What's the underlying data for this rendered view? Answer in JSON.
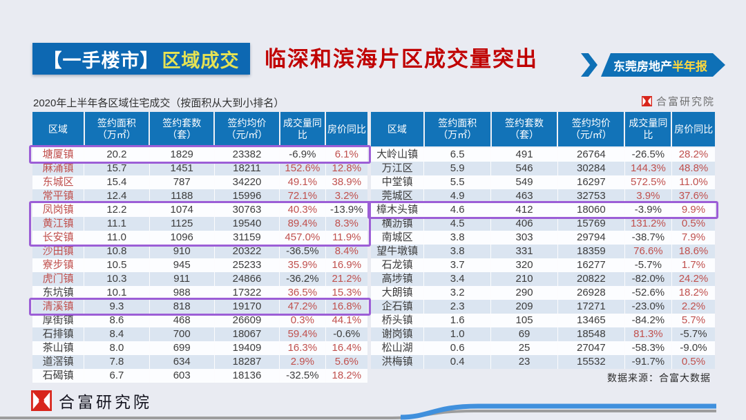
{
  "header": {
    "section_box": {
      "bracket": "【一手楼市】",
      "topic": "区域成交"
    },
    "title": "临深和滨海片区成交量突出",
    "ribbon": {
      "text_white": "东莞房地产",
      "text_yellow": "半年报"
    }
  },
  "subtitle": "2020年上半年各区域住宅成交（按面积从大到小排名）",
  "top_brand": "合富研究院",
  "footer_brand": "合富研究院",
  "source_note": "数据来源：合富大数据",
  "columns": [
    {
      "title": "区域",
      "unit": ""
    },
    {
      "title": "签约面积",
      "unit": "（万㎡）"
    },
    {
      "title": "签约套数",
      "unit": "（套）"
    },
    {
      "title": "签约均价",
      "unit": "（元/㎡）"
    },
    {
      "title": "成交量同比",
      "unit": ""
    },
    {
      "title": "房价同比",
      "unit": ""
    }
  ],
  "tables": [
    {
      "rows": [
        {
          "region": "塘厦镇",
          "red": true,
          "hl": true,
          "v": [
            "20.2",
            "1829",
            "23382",
            "-6.9%",
            "6.1%"
          ]
        },
        {
          "region": "麻涌镇",
          "red": true,
          "hl": false,
          "v": [
            "15.7",
            "1451",
            "18211",
            "152.6%",
            "12.8%"
          ]
        },
        {
          "region": "东城区",
          "red": true,
          "hl": false,
          "v": [
            "15.4",
            "787",
            "34220",
            "49.1%",
            "38.9%"
          ]
        },
        {
          "region": "常平镇",
          "red": true,
          "hl": false,
          "v": [
            "12.4",
            "1188",
            "15996",
            "72.1%",
            "3.2%"
          ]
        },
        {
          "region": "凤岗镇",
          "red": true,
          "hl": true,
          "v": [
            "12.2",
            "1074",
            "30763",
            "40.3%",
            "-13.9%"
          ]
        },
        {
          "region": "黄江镇",
          "red": true,
          "hl": true,
          "v": [
            "11.1",
            "1125",
            "19540",
            "89.4%",
            "8.3%"
          ]
        },
        {
          "region": "长安镇",
          "red": true,
          "hl": true,
          "v": [
            "11.0",
            "1096",
            "31159",
            "457.0%",
            "11.9%"
          ]
        },
        {
          "region": "沙田镇",
          "red": true,
          "hl": false,
          "v": [
            "10.8",
            "910",
            "20322",
            "-36.5%",
            "8.4%"
          ]
        },
        {
          "region": "寮步镇",
          "red": true,
          "hl": false,
          "v": [
            "10.5",
            "945",
            "25233",
            "35.9%",
            "16.9%"
          ]
        },
        {
          "region": "虎门镇",
          "red": true,
          "hl": false,
          "v": [
            "10.3",
            "911",
            "24866",
            "-36.2%",
            "21.2%"
          ]
        },
        {
          "region": "东坑镇",
          "red": false,
          "hl": false,
          "v": [
            "10.1",
            "988",
            "17322",
            "36.5%",
            "15.3%"
          ]
        },
        {
          "region": "清溪镇",
          "red": true,
          "hl": true,
          "v": [
            "9.3",
            "818",
            "19170",
            "47.2%",
            "16.8%"
          ]
        },
        {
          "region": "厚街镇",
          "red": false,
          "hl": false,
          "v": [
            "8.6",
            "468",
            "26609",
            "0.3%",
            "44.1%"
          ]
        },
        {
          "region": "石排镇",
          "red": false,
          "hl": false,
          "v": [
            "8.4",
            "700",
            "18067",
            "59.4%",
            "-0.6%"
          ]
        },
        {
          "region": "茶山镇",
          "red": false,
          "hl": false,
          "v": [
            "8.0",
            "699",
            "19409",
            "16.3%",
            "16.4%"
          ]
        },
        {
          "region": "道滘镇",
          "red": false,
          "hl": false,
          "v": [
            "7.8",
            "634",
            "18287",
            "2.9%",
            "5.6%"
          ]
        },
        {
          "region": "石碣镇",
          "red": false,
          "hl": false,
          "v": [
            "6.7",
            "603",
            "18136",
            "-32.5%",
            "18.2%"
          ]
        }
      ]
    },
    {
      "rows": [
        {
          "region": "大岭山镇",
          "red": false,
          "hl": false,
          "v": [
            "6.5",
            "491",
            "26764",
            "-26.5%",
            "28.2%"
          ]
        },
        {
          "region": "万江区",
          "red": false,
          "hl": false,
          "v": [
            "5.9",
            "546",
            "30284",
            "144.3%",
            "48.8%"
          ]
        },
        {
          "region": "中堂镇",
          "red": false,
          "hl": false,
          "v": [
            "5.5",
            "549",
            "16297",
            "572.5%",
            "11.0%"
          ]
        },
        {
          "region": "莞城区",
          "red": false,
          "hl": false,
          "v": [
            "4.9",
            "463",
            "32753",
            "3.9%",
            "37.6%"
          ]
        },
        {
          "region": "樟木头镇",
          "red": false,
          "hl": true,
          "v": [
            "4.6",
            "412",
            "18060",
            "-3.9%",
            "9.9%"
          ]
        },
        {
          "region": "横沥镇",
          "red": false,
          "hl": false,
          "v": [
            "4.5",
            "406",
            "15769",
            "131.2%",
            "0.5%"
          ]
        },
        {
          "region": "南城区",
          "red": false,
          "hl": false,
          "v": [
            "3.8",
            "303",
            "29794",
            "-38.7%",
            "7.9%"
          ]
        },
        {
          "region": "望牛墩镇",
          "red": false,
          "hl": false,
          "v": [
            "3.8",
            "331",
            "18359",
            "76.6%",
            "18.6%"
          ]
        },
        {
          "region": "石龙镇",
          "red": false,
          "hl": false,
          "v": [
            "3.7",
            "320",
            "16277",
            "-5.7%",
            "1.7%"
          ]
        },
        {
          "region": "高埗镇",
          "red": false,
          "hl": false,
          "v": [
            "3.4",
            "210",
            "20822",
            "-82.0%",
            "24.2%"
          ]
        },
        {
          "region": "大朗镇",
          "red": false,
          "hl": false,
          "v": [
            "3.2",
            "290",
            "26928",
            "-52.6%",
            "18.2%"
          ]
        },
        {
          "region": "企石镇",
          "red": false,
          "hl": false,
          "v": [
            "2.3",
            "209",
            "17271",
            "-23.0%",
            "2.2%"
          ]
        },
        {
          "region": "桥头镇",
          "red": false,
          "hl": false,
          "v": [
            "1.6",
            "105",
            "13465",
            "-84.2%",
            "5.7%"
          ]
        },
        {
          "region": "谢岗镇",
          "red": false,
          "hl": false,
          "v": [
            "1.0",
            "69",
            "18548",
            "81.3%",
            "-5.7%"
          ]
        },
        {
          "region": "松山湖",
          "red": false,
          "hl": false,
          "v": [
            "0.6",
            "25",
            "27047",
            "-58.3%",
            "-9.0%"
          ]
        },
        {
          "region": "洪梅镇",
          "red": false,
          "hl": false,
          "v": [
            "0.4",
            "23",
            "15532",
            "-91.7%",
            "0.5%"
          ]
        }
      ]
    }
  ],
  "colors": {
    "header_blue": "#1273b8",
    "section_blue": "#0d68b2",
    "title_red": "#c00000",
    "soft_red": "#c0504d",
    "highlight_purple": "#9c5ed6",
    "stripe_blue": "#dbe5f1",
    "ribbon_yellow": "#ffd83d",
    "topic_yellow": "#e6e253",
    "wave_blue": "#4090dd",
    "logo_red": "#d8261c"
  }
}
